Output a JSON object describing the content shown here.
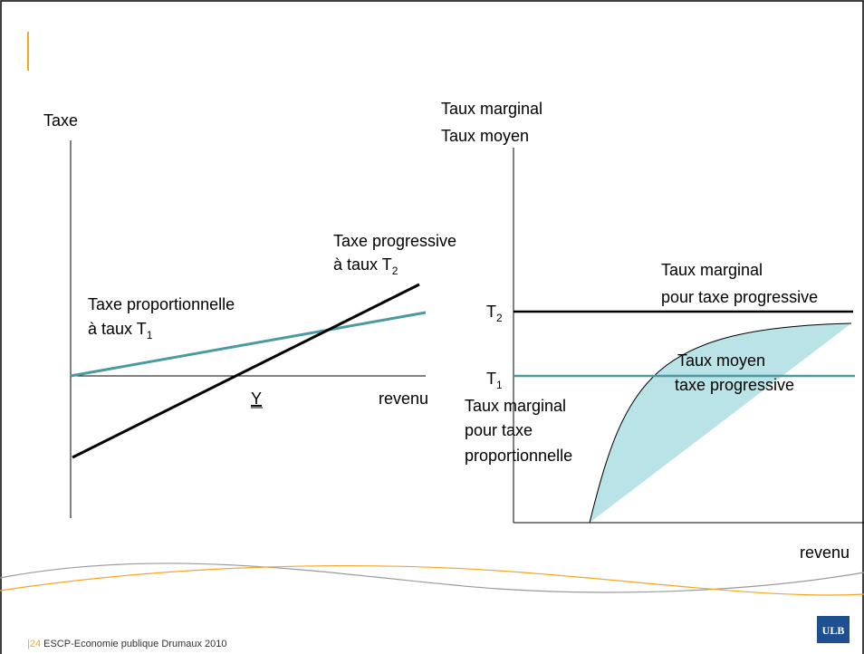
{
  "left": {
    "y_label": "Taxe",
    "progressive": {
      "line1": "Taxe progressive",
      "line2": "à taux T",
      "sub": "2"
    },
    "proportional": {
      "line1": "Taxe proportionnelle",
      "line2": "à  taux T",
      "sub": "1"
    },
    "y_point": "Y",
    "x_label": "revenu"
  },
  "right": {
    "y_label": [
      "Taux marginal",
      "Taux moyen"
    ],
    "marginal_progressive": [
      "Taux marginal",
      "pour taxe progressive"
    ],
    "t2": {
      "letter": "T",
      "sub": "2"
    },
    "t1": {
      "letter": "T",
      "sub": "1"
    },
    "average_progressive": [
      "Taux moyen",
      "taxe progressive"
    ],
    "marginal_proportional": [
      "Taux marginal",
      "pour taxe",
      "proportionnelle"
    ],
    "x_label": "revenu"
  },
  "footer": {
    "page": "24",
    "text": "ESCP-Economie publique Drumaux 2010"
  },
  "logo": "ULB"
}
